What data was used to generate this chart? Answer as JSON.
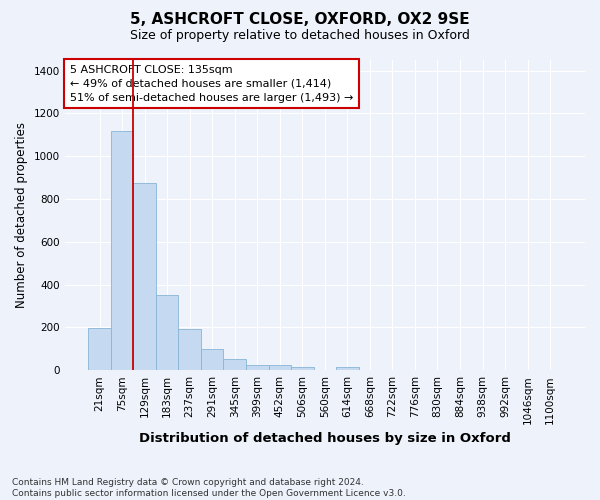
{
  "title": "5, ASHCROFT CLOSE, OXFORD, OX2 9SE",
  "subtitle": "Size of property relative to detached houses in Oxford",
  "xlabel": "Distribution of detached houses by size in Oxford",
  "ylabel": "Number of detached properties",
  "categories": [
    "21sqm",
    "75sqm",
    "129sqm",
    "183sqm",
    "237sqm",
    "291sqm",
    "345sqm",
    "399sqm",
    "452sqm",
    "506sqm",
    "560sqm",
    "614sqm",
    "668sqm",
    "722sqm",
    "776sqm",
    "830sqm",
    "884sqm",
    "938sqm",
    "992sqm",
    "1046sqm",
    "1100sqm"
  ],
  "values": [
    197,
    1120,
    877,
    352,
    192,
    100,
    53,
    25,
    22,
    17,
    0,
    15,
    0,
    0,
    0,
    0,
    0,
    0,
    0,
    0,
    0
  ],
  "bar_color": "#c5d9f0",
  "bar_edge_color": "#8ab4d8",
  "vline_index": 2,
  "vline_color": "#cc0000",
  "annotation_line1": "5 ASHCROFT CLOSE: 135sqm",
  "annotation_line2": "← 49% of detached houses are smaller (1,414)",
  "annotation_line3": "51% of semi-detached houses are larger (1,493) →",
  "annotation_box_color": "#ffffff",
  "annotation_box_edge_color": "#cc0000",
  "ylim": [
    0,
    1450
  ],
  "yticks": [
    0,
    200,
    400,
    600,
    800,
    1000,
    1200,
    1400
  ],
  "background_color": "#edf2fb",
  "grid_color": "#ffffff",
  "footnote": "Contains HM Land Registry data © Crown copyright and database right 2024.\nContains public sector information licensed under the Open Government Licence v3.0.",
  "title_fontsize": 11,
  "subtitle_fontsize": 9,
  "xlabel_fontsize": 9.5,
  "ylabel_fontsize": 8.5,
  "tick_fontsize": 7.5,
  "annot_fontsize": 8,
  "footnote_fontsize": 6.5
}
